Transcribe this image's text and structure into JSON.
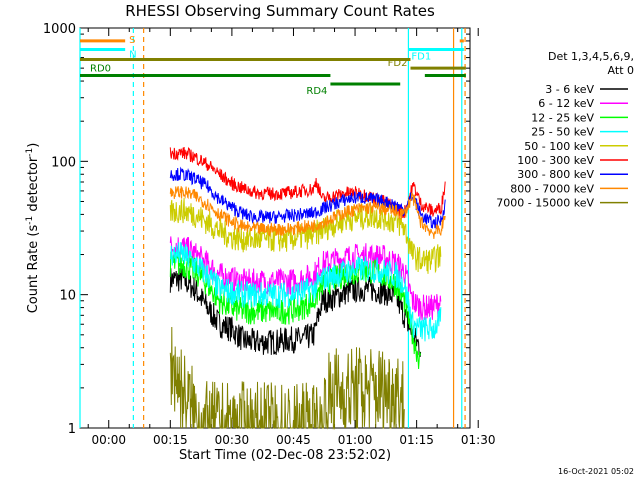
{
  "title": "RHESSI Observing Summary Count Rates",
  "detector_label": "Det 1,3,4,5,6,9,\nAtt 0",
  "date_stamp": "16-Oct-2021 05:02",
  "chart_data": {
    "type": "line",
    "title": "RHESSI Observing Summary Count Rates",
    "xlabel": "Start Time (02-Dec-08 23:52:02)",
    "ylabel_parts": [
      "Count Rate (s",
      "-1",
      " detector",
      "-1",
      ")"
    ],
    "y_scale": "log",
    "ylim": [
      1,
      1000
    ],
    "y_ticks": [
      1,
      10,
      100,
      1000
    ],
    "xlim_min": [
      -7,
      88
    ],
    "x_ticks_min": [
      0,
      15,
      30,
      45,
      60,
      75,
      90
    ],
    "x_tick_labels": [
      "00:00",
      "00:15",
      "00:30",
      "00:45",
      "01:00",
      "01:15",
      "01:30"
    ],
    "legend_position": "right",
    "series": [
      {
        "name": "3 - 6 keV",
        "color": "#000000",
        "points": [
          [
            15,
            13
          ],
          [
            18,
            13
          ],
          [
            21,
            11
          ],
          [
            24,
            8
          ],
          [
            27,
            6
          ],
          [
            30,
            5.5
          ],
          [
            33,
            4.5
          ],
          [
            36,
            4.4
          ],
          [
            40,
            4.4
          ],
          [
            44,
            4.6
          ],
          [
            47,
            4.6
          ],
          [
            50,
            5
          ],
          [
            52,
            9
          ],
          [
            55,
            9.5
          ],
          [
            58,
            10.5
          ],
          [
            61,
            11
          ],
          [
            64,
            11
          ],
          [
            67,
            10.5
          ],
          [
            70,
            9.5
          ],
          [
            72,
            7
          ],
          [
            74,
            5
          ],
          [
            76,
            4
          ]
        ]
      },
      {
        "name": "6 - 12 keV",
        "color": "#ff00ff",
        "points": [
          [
            15,
            23
          ],
          [
            18,
            23
          ],
          [
            21,
            20
          ],
          [
            24,
            17
          ],
          [
            27,
            14
          ],
          [
            30,
            13
          ],
          [
            33,
            12.5
          ],
          [
            36,
            12.5
          ],
          [
            40,
            12.5
          ],
          [
            44,
            12.5
          ],
          [
            47,
            13
          ],
          [
            50,
            14
          ],
          [
            52,
            17
          ],
          [
            55,
            18
          ],
          [
            58,
            19
          ],
          [
            61,
            19.5
          ],
          [
            64,
            19.5
          ],
          [
            67,
            19
          ],
          [
            70,
            17
          ],
          [
            72,
            15
          ],
          [
            74,
            9
          ],
          [
            76,
            8
          ],
          [
            79,
            8
          ],
          [
            81,
            9
          ]
        ]
      },
      {
        "name": "12 - 25 keV",
        "color": "#00ff00",
        "points": [
          [
            15,
            17
          ],
          [
            18,
            17
          ],
          [
            21,
            15
          ],
          [
            24,
            12
          ],
          [
            27,
            9
          ],
          [
            30,
            8
          ],
          [
            33,
            7.5
          ],
          [
            36,
            7.5
          ],
          [
            40,
            7.5
          ],
          [
            44,
            7.5
          ],
          [
            47,
            8
          ],
          [
            50,
            9
          ],
          [
            52,
            12
          ],
          [
            55,
            13
          ],
          [
            58,
            14.5
          ],
          [
            61,
            15
          ],
          [
            64,
            15
          ],
          [
            67,
            14
          ],
          [
            70,
            12
          ],
          [
            72,
            9
          ],
          [
            74,
            5
          ],
          [
            76,
            3
          ]
        ]
      },
      {
        "name": "25 - 50 keV",
        "color": "#00ffff",
        "points": [
          [
            15,
            20
          ],
          [
            18,
            20
          ],
          [
            21,
            17
          ],
          [
            24,
            14
          ],
          [
            27,
            11
          ],
          [
            30,
            10.5
          ],
          [
            33,
            10
          ],
          [
            36,
            10
          ],
          [
            40,
            10
          ],
          [
            44,
            10
          ],
          [
            47,
            10.5
          ],
          [
            50,
            11
          ],
          [
            52,
            13
          ],
          [
            55,
            14
          ],
          [
            58,
            15
          ],
          [
            61,
            15.5
          ],
          [
            64,
            15.5
          ],
          [
            67,
            15
          ],
          [
            70,
            14
          ],
          [
            72,
            12
          ],
          [
            74,
            6
          ],
          [
            76,
            5.5
          ],
          [
            79,
            5.5
          ],
          [
            81,
            6.5
          ]
        ]
      },
      {
        "name": "50 - 100 keV",
        "color": "#cccc00",
        "points": [
          [
            15,
            42
          ],
          [
            18,
            43
          ],
          [
            21,
            40
          ],
          [
            24,
            35
          ],
          [
            27,
            30
          ],
          [
            30,
            27
          ],
          [
            33,
            26
          ],
          [
            36,
            26
          ],
          [
            40,
            26
          ],
          [
            44,
            26
          ],
          [
            47,
            27
          ],
          [
            50,
            28
          ],
          [
            52,
            31
          ],
          [
            55,
            34
          ],
          [
            58,
            37
          ],
          [
            61,
            38
          ],
          [
            64,
            39
          ],
          [
            67,
            38
          ],
          [
            70,
            35
          ],
          [
            72,
            32
          ],
          [
            74,
            20
          ],
          [
            76,
            18
          ],
          [
            79,
            18
          ],
          [
            81,
            20
          ]
        ]
      },
      {
        "name": "100 - 300 keV",
        "color": "#ff0000",
        "points": [
          [
            15,
            115
          ],
          [
            18,
            116
          ],
          [
            21,
            108
          ],
          [
            24,
            95
          ],
          [
            27,
            80
          ],
          [
            30,
            68
          ],
          [
            33,
            62
          ],
          [
            36,
            58
          ],
          [
            40,
            57
          ],
          [
            44,
            58
          ],
          [
            47,
            60
          ],
          [
            50,
            62
          ],
          [
            50.5,
            72
          ],
          [
            52,
            52
          ],
          [
            55,
            55
          ],
          [
            58,
            58
          ],
          [
            61,
            58
          ],
          [
            64,
            54
          ],
          [
            67,
            50
          ],
          [
            70,
            45
          ],
          [
            72,
            41
          ],
          [
            74,
            64
          ],
          [
            74.5,
            64
          ],
          [
            76,
            48
          ],
          [
            79,
            42
          ],
          [
            81,
            45
          ],
          [
            82,
            70
          ]
        ]
      },
      {
        "name": "300 - 800 keV",
        "color": "#0000ff",
        "points": [
          [
            15,
            80
          ],
          [
            18,
            80
          ],
          [
            21,
            74
          ],
          [
            24,
            65
          ],
          [
            27,
            52
          ],
          [
            30,
            45
          ],
          [
            33,
            40
          ],
          [
            36,
            38
          ],
          [
            40,
            38
          ],
          [
            44,
            39
          ],
          [
            47,
            40
          ],
          [
            50,
            41
          ],
          [
            52,
            44
          ],
          [
            55,
            48
          ],
          [
            58,
            52
          ],
          [
            61,
            54
          ],
          [
            64,
            52
          ],
          [
            67,
            50
          ],
          [
            70,
            47
          ],
          [
            72,
            43
          ],
          [
            74,
            56
          ],
          [
            76,
            40
          ],
          [
            79,
            34
          ],
          [
            81,
            36
          ],
          [
            82,
            50
          ]
        ]
      },
      {
        "name": "800 - 7000 keV",
        "color": "#ff8800",
        "points": [
          [
            15,
            58
          ],
          [
            18,
            59
          ],
          [
            21,
            55
          ],
          [
            24,
            48
          ],
          [
            27,
            40
          ],
          [
            30,
            35
          ],
          [
            33,
            32
          ],
          [
            36,
            31
          ],
          [
            40,
            31
          ],
          [
            44,
            31
          ],
          [
            47,
            32
          ],
          [
            50,
            33
          ],
          [
            52,
            35
          ],
          [
            55,
            38
          ],
          [
            58,
            42
          ],
          [
            61,
            44
          ],
          [
            64,
            45
          ],
          [
            67,
            44
          ],
          [
            70,
            42
          ],
          [
            72,
            40
          ],
          [
            74,
            55
          ],
          [
            76,
            35
          ],
          [
            79,
            29
          ],
          [
            81,
            31
          ],
          [
            82,
            38
          ]
        ]
      },
      {
        "name": "7000 - 15000 keV",
        "color": "#808000",
        "points": [
          [
            15,
            3.2
          ],
          [
            17,
            2.3
          ],
          [
            18,
            1.8
          ],
          [
            20,
            1.4
          ],
          [
            22,
            1.1
          ],
          [
            24,
            1.0
          ],
          [
            52,
            1.0
          ],
          [
            53,
            1.6
          ],
          [
            55,
            1.9
          ],
          [
            57,
            1.8
          ],
          [
            60,
            1.9
          ],
          [
            64,
            1.9
          ],
          [
            68,
            1.9
          ],
          [
            71,
            1.9
          ],
          [
            72,
            1.5
          ]
        ]
      }
    ],
    "state_bars": [
      {
        "label": "S",
        "color": "#ff8800",
        "start_min": -7,
        "end_min": 4,
        "value": 800
      },
      {
        "label": "",
        "color": "#ff8800",
        "start_min": 85.5,
        "end_min": 86.5,
        "value": 800
      },
      {
        "label": "N",
        "color": "#00ffff",
        "start_min": -7,
        "end_min": 4,
        "value": 690
      },
      {
        "label": "FD1",
        "color": "#00ffff",
        "start_min": 73,
        "end_min": 86.5,
        "value": 690
      },
      {
        "label": "",
        "color": "#808000",
        "start_min": -7,
        "end_min": 73.5,
        "value": 580
      },
      {
        "label": "FD2",
        "color": "#808000",
        "start_min": 73.5,
        "end_min": 87,
        "value": 500
      },
      {
        "label": "RD0",
        "color": "#008000",
        "start_min": -7,
        "end_min": 54,
        "value": 440
      },
      {
        "label": "",
        "color": "#008000",
        "start_min": 77,
        "end_min": 87,
        "value": 440
      },
      {
        "label": "RD4",
        "color": "#008000",
        "start_min": 54,
        "end_min": 71,
        "value": 380
      }
    ],
    "vertical_lines": [
      {
        "min": -7,
        "color": "#00ffff",
        "style": "solid"
      },
      {
        "min": 6,
        "color": "#00ffff",
        "style": "dashed"
      },
      {
        "min": 8.5,
        "color": "#ff8800",
        "style": "dashed"
      },
      {
        "min": 73,
        "color": "#00ffff",
        "style": "solid"
      },
      {
        "min": 84,
        "color": "#ff8800",
        "style": "solid"
      },
      {
        "min": 86,
        "color": "#00ffff",
        "style": "solid"
      },
      {
        "min": 86.8,
        "color": "#ff8800",
        "style": "dashed"
      }
    ]
  }
}
